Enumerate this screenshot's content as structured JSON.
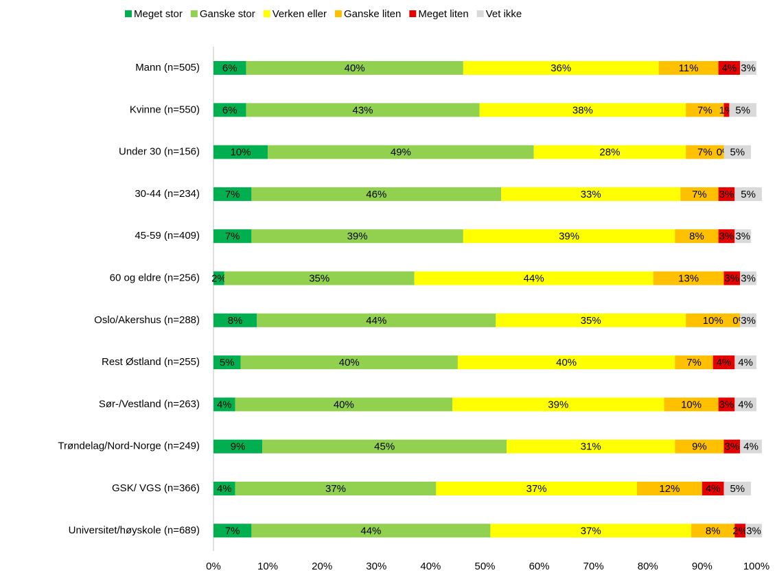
{
  "chart_data": {
    "type": "stacked-bar-horizontal",
    "categories": [
      "Mann (n=505)",
      "Kvinne (n=550)",
      "Under 30 (n=156)",
      "30-44 (n=234)",
      "45-59 (n=409)",
      "60 og eldre (n=256)",
      "Oslo/Akershus (n=288)",
      "Rest Østland (n=255)",
      "Sør-/Vestland (n=263)",
      "Trøndelag/Nord-Norge (n=249)",
      "GSK/ VGS (n=366)",
      "Universitet/høyskole (n=689)"
    ],
    "series": [
      {
        "name": "Meget stor",
        "color": "#00b050",
        "values": [
          6,
          6,
          10,
          7,
          7,
          2,
          8,
          5,
          4,
          9,
          4,
          7
        ],
        "value_labels": [
          "6%",
          "6%",
          "10%",
          "7%",
          "7%",
          "2%",
          "8%",
          "5%",
          "4%",
          "9%",
          "4%",
          "7%"
        ]
      },
      {
        "name": "Ganske stor",
        "color": "#92d050",
        "values": [
          40,
          43,
          49,
          46,
          39,
          35,
          44,
          40,
          40,
          45,
          37,
          44
        ],
        "value_labels": [
          "40%",
          "43%",
          "49%",
          "46%",
          "39%",
          "35%",
          "44%",
          "40%",
          "40%",
          "45%",
          "37%",
          "44%"
        ]
      },
      {
        "name": "Verken eller",
        "color": "#ffff00",
        "values": [
          36,
          38,
          28,
          33,
          39,
          44,
          35,
          40,
          39,
          31,
          37,
          37
        ],
        "value_labels": [
          "36%",
          "38%",
          "28%",
          "33%",
          "39%",
          "44%",
          "35%",
          "40%",
          "39%",
          "31%",
          "37%",
          "37%"
        ]
      },
      {
        "name": "Ganske liten",
        "color": "#ffc000",
        "values": [
          11,
          7,
          7,
          7,
          8,
          13,
          10,
          7,
          10,
          9,
          12,
          8
        ],
        "value_labels": [
          "11%",
          "7%",
          "7%",
          "7%",
          "8%",
          "13%",
          "10%",
          "7%",
          "10%",
          "9%",
          "12%",
          "8%"
        ]
      },
      {
        "name": "Meget liten",
        "color": "#e60000",
        "values": [
          4,
          1,
          0,
          3,
          3,
          3,
          0,
          4,
          3,
          3,
          4,
          2
        ],
        "value_labels": [
          "4%",
          "1%",
          "0%",
          "3%",
          "3%",
          "3%",
          "0%",
          "4%",
          "3%",
          "3%",
          "4%",
          "2%"
        ]
      },
      {
        "name": "Vet ikke",
        "color": "#d9d9d9",
        "values": [
          3,
          5,
          5,
          5,
          3,
          3,
          3,
          4,
          4,
          4,
          5,
          3
        ],
        "value_labels": [
          "3%",
          "5%",
          "5%",
          "5%",
          "3%",
          "3%",
          "3%",
          "4%",
          "4%",
          "4%",
          "5%",
          "3%"
        ]
      }
    ],
    "xlim": [
      0,
      100
    ],
    "xticks": [
      {
        "value": 0,
        "label": "0%"
      },
      {
        "value": 10,
        "label": "10%"
      },
      {
        "value": 20,
        "label": "20%"
      },
      {
        "value": 30,
        "label": "30%"
      },
      {
        "value": 40,
        "label": "40%"
      },
      {
        "value": 50,
        "label": "50%"
      },
      {
        "value": 60,
        "label": "60%"
      },
      {
        "value": 70,
        "label": "70%"
      },
      {
        "value": 80,
        "label": "80%"
      },
      {
        "value": 90,
        "label": "90%"
      },
      {
        "value": 100,
        "label": "100%"
      }
    ],
    "legend": "top",
    "grid": false
  }
}
